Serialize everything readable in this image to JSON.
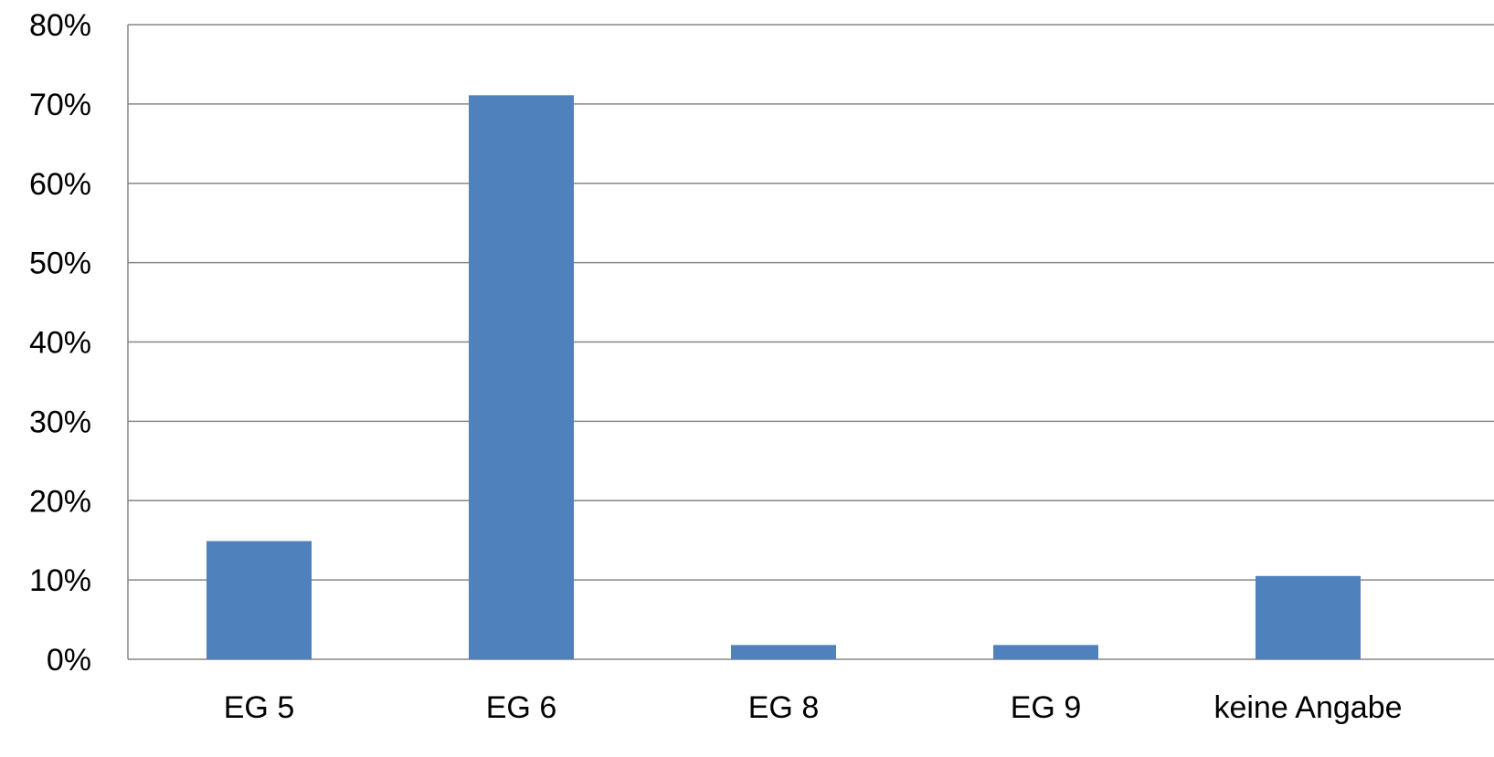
{
  "chart_data": {
    "type": "bar",
    "categories": [
      "EG 5",
      "EG 6",
      "EG 8",
      "EG 9",
      "keine Angabe"
    ],
    "values": [
      14.9,
      71.1,
      1.8,
      1.8,
      10.5
    ],
    "ylim": [
      0,
      80
    ],
    "yticks": [
      0,
      10,
      20,
      30,
      40,
      50,
      60,
      70,
      80
    ],
    "ytick_labels": [
      "0%",
      "10%",
      "20%",
      "30%",
      "40%",
      "50%",
      "60%",
      "70%",
      "80%"
    ],
    "title": "",
    "xlabel": "",
    "ylabel": "",
    "grid": true,
    "legend": "none",
    "colors": {
      "bar": "#4f81bd",
      "grid": "#868686"
    }
  }
}
